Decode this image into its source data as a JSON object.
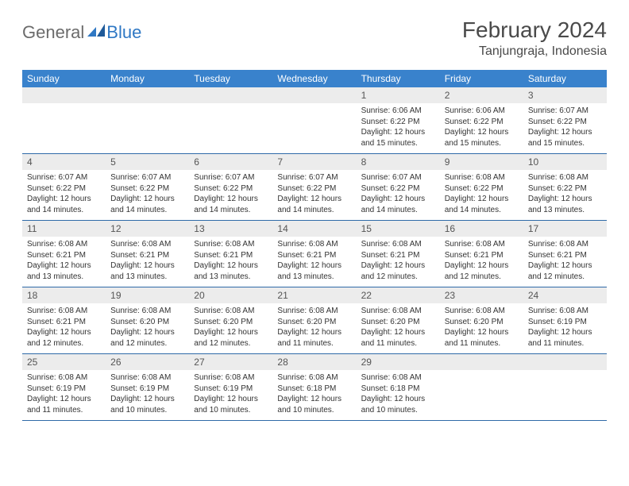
{
  "logo": {
    "general": "General",
    "blue": "Blue"
  },
  "title": "February 2024",
  "location": "Tanjungraja, Indonesia",
  "colors": {
    "header_bg": "#3982cc",
    "header_text": "#ffffff",
    "daynum_bg": "#ececec",
    "row_border": "#2f6aa8",
    "logo_gray": "#6b6b6b",
    "logo_blue": "#2f78c4"
  },
  "weekdays": [
    "Sunday",
    "Monday",
    "Tuesday",
    "Wednesday",
    "Thursday",
    "Friday",
    "Saturday"
  ],
  "weeks": [
    [
      null,
      null,
      null,
      null,
      {
        "n": "1",
        "sr": "Sunrise: 6:06 AM",
        "ss": "Sunset: 6:22 PM",
        "dl": "Daylight: 12 hours and 15 minutes."
      },
      {
        "n": "2",
        "sr": "Sunrise: 6:06 AM",
        "ss": "Sunset: 6:22 PM",
        "dl": "Daylight: 12 hours and 15 minutes."
      },
      {
        "n": "3",
        "sr": "Sunrise: 6:07 AM",
        "ss": "Sunset: 6:22 PM",
        "dl": "Daylight: 12 hours and 15 minutes."
      }
    ],
    [
      {
        "n": "4",
        "sr": "Sunrise: 6:07 AM",
        "ss": "Sunset: 6:22 PM",
        "dl": "Daylight: 12 hours and 14 minutes."
      },
      {
        "n": "5",
        "sr": "Sunrise: 6:07 AM",
        "ss": "Sunset: 6:22 PM",
        "dl": "Daylight: 12 hours and 14 minutes."
      },
      {
        "n": "6",
        "sr": "Sunrise: 6:07 AM",
        "ss": "Sunset: 6:22 PM",
        "dl": "Daylight: 12 hours and 14 minutes."
      },
      {
        "n": "7",
        "sr": "Sunrise: 6:07 AM",
        "ss": "Sunset: 6:22 PM",
        "dl": "Daylight: 12 hours and 14 minutes."
      },
      {
        "n": "8",
        "sr": "Sunrise: 6:07 AM",
        "ss": "Sunset: 6:22 PM",
        "dl": "Daylight: 12 hours and 14 minutes."
      },
      {
        "n": "9",
        "sr": "Sunrise: 6:08 AM",
        "ss": "Sunset: 6:22 PM",
        "dl": "Daylight: 12 hours and 14 minutes."
      },
      {
        "n": "10",
        "sr": "Sunrise: 6:08 AM",
        "ss": "Sunset: 6:22 PM",
        "dl": "Daylight: 12 hours and 13 minutes."
      }
    ],
    [
      {
        "n": "11",
        "sr": "Sunrise: 6:08 AM",
        "ss": "Sunset: 6:21 PM",
        "dl": "Daylight: 12 hours and 13 minutes."
      },
      {
        "n": "12",
        "sr": "Sunrise: 6:08 AM",
        "ss": "Sunset: 6:21 PM",
        "dl": "Daylight: 12 hours and 13 minutes."
      },
      {
        "n": "13",
        "sr": "Sunrise: 6:08 AM",
        "ss": "Sunset: 6:21 PM",
        "dl": "Daylight: 12 hours and 13 minutes."
      },
      {
        "n": "14",
        "sr": "Sunrise: 6:08 AM",
        "ss": "Sunset: 6:21 PM",
        "dl": "Daylight: 12 hours and 13 minutes."
      },
      {
        "n": "15",
        "sr": "Sunrise: 6:08 AM",
        "ss": "Sunset: 6:21 PM",
        "dl": "Daylight: 12 hours and 12 minutes."
      },
      {
        "n": "16",
        "sr": "Sunrise: 6:08 AM",
        "ss": "Sunset: 6:21 PM",
        "dl": "Daylight: 12 hours and 12 minutes."
      },
      {
        "n": "17",
        "sr": "Sunrise: 6:08 AM",
        "ss": "Sunset: 6:21 PM",
        "dl": "Daylight: 12 hours and 12 minutes."
      }
    ],
    [
      {
        "n": "18",
        "sr": "Sunrise: 6:08 AM",
        "ss": "Sunset: 6:21 PM",
        "dl": "Daylight: 12 hours and 12 minutes."
      },
      {
        "n": "19",
        "sr": "Sunrise: 6:08 AM",
        "ss": "Sunset: 6:20 PM",
        "dl": "Daylight: 12 hours and 12 minutes."
      },
      {
        "n": "20",
        "sr": "Sunrise: 6:08 AM",
        "ss": "Sunset: 6:20 PM",
        "dl": "Daylight: 12 hours and 12 minutes."
      },
      {
        "n": "21",
        "sr": "Sunrise: 6:08 AM",
        "ss": "Sunset: 6:20 PM",
        "dl": "Daylight: 12 hours and 11 minutes."
      },
      {
        "n": "22",
        "sr": "Sunrise: 6:08 AM",
        "ss": "Sunset: 6:20 PM",
        "dl": "Daylight: 12 hours and 11 minutes."
      },
      {
        "n": "23",
        "sr": "Sunrise: 6:08 AM",
        "ss": "Sunset: 6:20 PM",
        "dl": "Daylight: 12 hours and 11 minutes."
      },
      {
        "n": "24",
        "sr": "Sunrise: 6:08 AM",
        "ss": "Sunset: 6:19 PM",
        "dl": "Daylight: 12 hours and 11 minutes."
      }
    ],
    [
      {
        "n": "25",
        "sr": "Sunrise: 6:08 AM",
        "ss": "Sunset: 6:19 PM",
        "dl": "Daylight: 12 hours and 11 minutes."
      },
      {
        "n": "26",
        "sr": "Sunrise: 6:08 AM",
        "ss": "Sunset: 6:19 PM",
        "dl": "Daylight: 12 hours and 10 minutes."
      },
      {
        "n": "27",
        "sr": "Sunrise: 6:08 AM",
        "ss": "Sunset: 6:19 PM",
        "dl": "Daylight: 12 hours and 10 minutes."
      },
      {
        "n": "28",
        "sr": "Sunrise: 6:08 AM",
        "ss": "Sunset: 6:18 PM",
        "dl": "Daylight: 12 hours and 10 minutes."
      },
      {
        "n": "29",
        "sr": "Sunrise: 6:08 AM",
        "ss": "Sunset: 6:18 PM",
        "dl": "Daylight: 12 hours and 10 minutes."
      },
      null,
      null
    ]
  ]
}
